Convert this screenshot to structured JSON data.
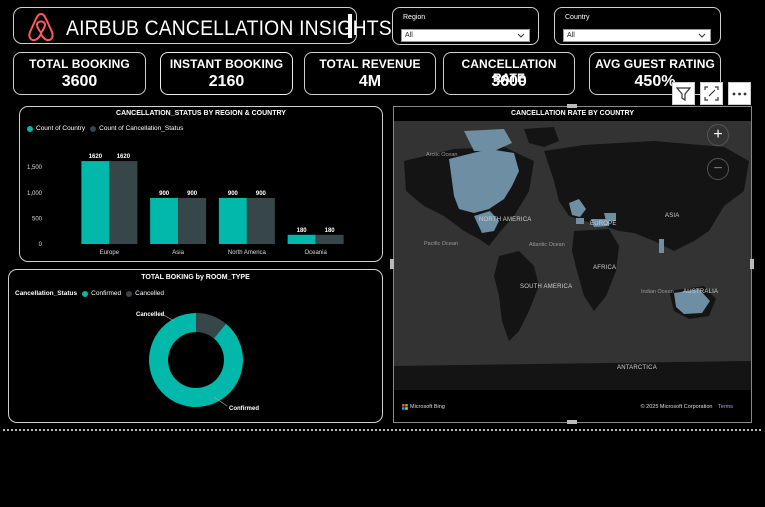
{
  "header": {
    "title": "AIRBUB CANCELLATION INSIGHTS"
  },
  "colors": {
    "accent": "#01B8AA",
    "secondary": "#374649",
    "logo": "#ff5a5f"
  },
  "filters": [
    {
      "label": "Region",
      "value": "All"
    },
    {
      "label": "Country",
      "value": "All"
    }
  ],
  "kpis": [
    {
      "label": "TOTAL BOOKING",
      "value": "3600"
    },
    {
      "label": "INSTANT BOOKING",
      "value": "2160"
    },
    {
      "label": "TOTAL REVENUE",
      "value": "4M"
    },
    {
      "label": "CANCELLATION RATE",
      "value": "3600"
    },
    {
      "label": "AVG GUEST RATING",
      "value": "450%"
    }
  ],
  "toolbar": {
    "filter_icon": "filter-icon",
    "focus_icon": "focus-mode-icon",
    "more_icon": "more-options-icon"
  },
  "chart_data": [
    {
      "type": "bar",
      "title": "CANCELLATION_STATUS BY REGION & COUNTRY",
      "categories": [
        "Europe",
        "Asia",
        "North America",
        "Oceania"
      ],
      "series": [
        {
          "name": "Count of Country",
          "values": [
            1620,
            900,
            900,
            180
          ]
        },
        {
          "name": "Count of Cancellation_Status",
          "values": [
            1620,
            900,
            900,
            180
          ]
        }
      ],
      "yticks": [
        "1,500",
        "1,000",
        "500",
        "0"
      ],
      "ylim": [
        0,
        1700
      ],
      "legend": "top-left"
    },
    {
      "type": "pie",
      "title": "TOTAL BOKING by ROOM_TYPE",
      "legend_title": "Cancellation_Status",
      "slices": [
        {
          "name": "Confirmed",
          "value": 0.89
        },
        {
          "name": "Cancelled",
          "value": 0.11
        }
      ],
      "legend": "top-left"
    }
  ],
  "map": {
    "title": "CANCELLATION RATE BY COUNTRY",
    "labels": {
      "arctic": "Arctic Ocean",
      "north_america": "NORTH AMERICA",
      "pacific": "Pacific Ocean",
      "atlantic": "Atlantic Ocean",
      "europe": "EUROPE",
      "asia": "ASIA",
      "africa": "AFRICA",
      "south_america": "SOUTH AMERICA",
      "indian": "Indian Ocean",
      "australia": "AUSTRALIA",
      "antarctica": "ANTARCTICA"
    },
    "attribution": "© 2025 Microsoft Corporation",
    "terms": "Terms",
    "brand": "Microsoft Bing",
    "zoom_in": "+",
    "zoom_out": "−"
  }
}
